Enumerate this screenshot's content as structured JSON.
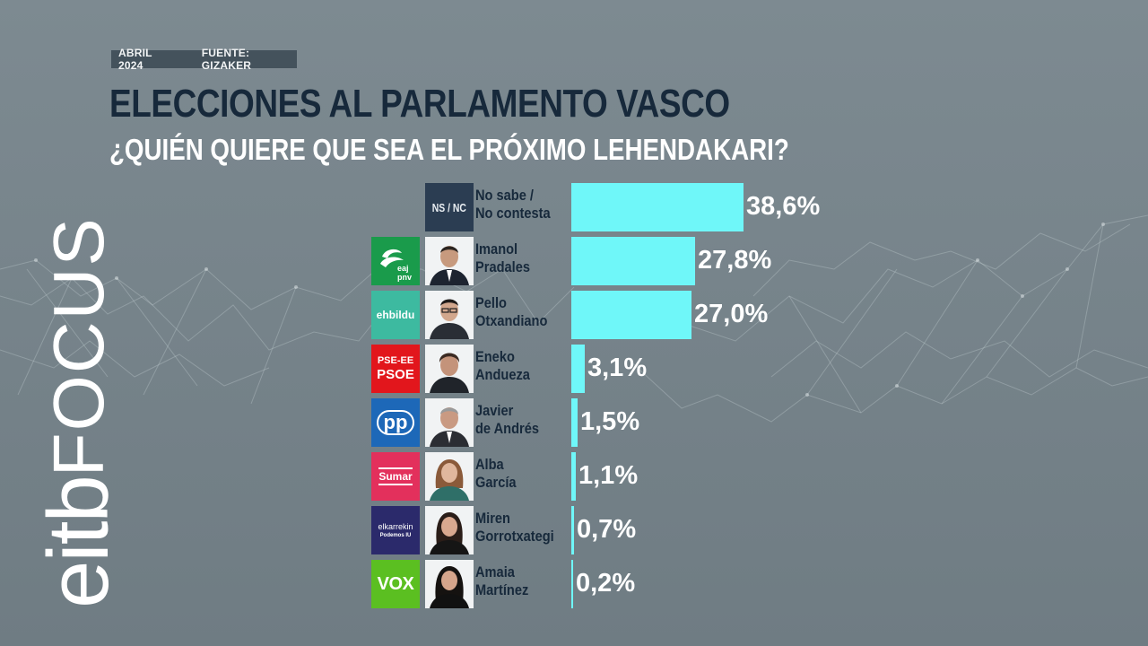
{
  "header": {
    "date": "ABRIL 2024",
    "source": "FUENTE: GIZAKER",
    "title": "ELECCIONES AL PARLAMENTO VASCO",
    "subtitle": "¿QUIÉN QUIERE QUE SEA EL PRÓXIMO LEHENDAKARI?"
  },
  "brand": {
    "part1": "eitb",
    "part2": "FOCUS"
  },
  "colors": {
    "bar": "#6ff7f9",
    "title": "#17293b",
    "background": "#7a878e"
  },
  "candidates": [
    {
      "logo_text": "NS / NC",
      "name": "No sabe /\nNo contesta",
      "value_label": "38,6%",
      "party_icon": "ns-nc-box"
    },
    {
      "logo_text": "eaj pnv",
      "name": "Imanol\nPradales",
      "value_label": "27,8%",
      "party_icon": "eaj-pnv-logo"
    },
    {
      "logo_text": "ehbildu",
      "name": "Pello\nOtxandiano",
      "value_label": "27,0%",
      "party_icon": "ehbildu-logo"
    },
    {
      "logo_text": "PSE-EE",
      "logo_text2": "PSOE",
      "name": "Eneko\nAndueza",
      "value_label": "3,1%",
      "party_icon": "pse-ee-psoe-logo"
    },
    {
      "logo_text": "pp",
      "name": "Javier\nde Andrés",
      "value_label": "1,5%",
      "party_icon": "pp-logo"
    },
    {
      "logo_text": "Sumar",
      "name": "Alba\nGarcía",
      "value_label": "1,1%",
      "party_icon": "sumar-logo"
    },
    {
      "logo_text": "elkarrekin",
      "logo_text2": "Podemos IU",
      "name": "Miren\nGorrotxategi",
      "value_label": "0,7%",
      "party_icon": "elkarrekin-podemos-logo"
    },
    {
      "logo_text": "VOX",
      "name": "Amaia\nMartínez",
      "value_label": "0,2%",
      "party_icon": "vox-logo"
    }
  ],
  "chart_data": {
    "type": "bar",
    "title": "ELECCIONES AL PARLAMENTO VASCO",
    "subtitle": "¿QUIÉN QUIERE QUE SEA EL PRÓXIMO LEHENDAKARI?",
    "orientation": "horizontal",
    "categories": [
      "No sabe / No contesta",
      "Imanol Pradales",
      "Pello Otxandiano",
      "Eneko Andueza",
      "Javier de Andrés",
      "Alba García",
      "Miren Gorrotxategi",
      "Amaia Martínez"
    ],
    "values": [
      38.6,
      27.8,
      27.0,
      3.1,
      1.5,
      1.1,
      0.7,
      0.2
    ],
    "unit": "%",
    "grid": false,
    "legend": "none"
  }
}
